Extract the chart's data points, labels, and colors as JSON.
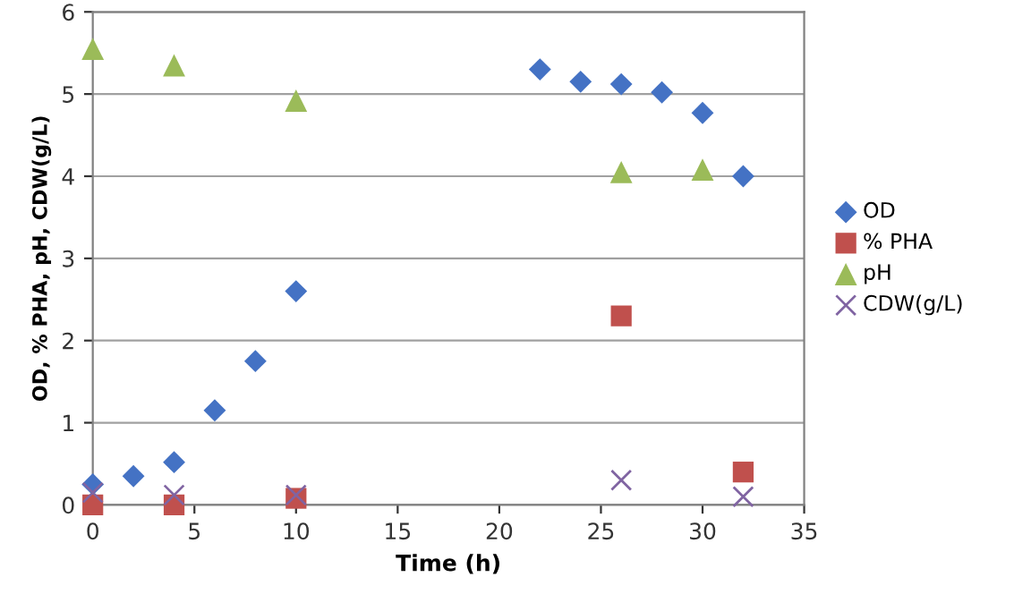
{
  "chart_data": {
    "type": "scatter",
    "xlabel": "Time (h)",
    "ylabel": "OD, % PHA, pH, CDW(g/L)",
    "xlim": [
      0,
      35
    ],
    "xticks": [
      0,
      5,
      10,
      15,
      20,
      25,
      30,
      35
    ],
    "ylim": [
      0,
      6
    ],
    "yticks": [
      0,
      1,
      2,
      3,
      4,
      5,
      6
    ],
    "grid": "y",
    "legend": "right",
    "series": [
      {
        "name": "OD",
        "color": "#4472c4",
        "marker": "diamond",
        "x": [
          0,
          2,
          4,
          6,
          8,
          10,
          22,
          24,
          26,
          28,
          30,
          32
        ],
        "values": [
          0.25,
          0.35,
          0.52,
          1.15,
          1.75,
          2.6,
          5.3,
          5.15,
          5.12,
          5.02,
          4.77,
          4.0
        ]
      },
      {
        "name": "% PHA",
        "color": "#c0504d",
        "marker": "square",
        "x": [
          0,
          4,
          10,
          26,
          32
        ],
        "values": [
          0,
          0,
          0.08,
          2.3,
          0.4
        ]
      },
      {
        "name": "pH",
        "color": "#9bbb59",
        "marker": "triangle",
        "x": [
          0,
          4,
          10,
          26,
          30
        ],
        "values": [
          5.55,
          5.35,
          4.92,
          4.05,
          4.08
        ]
      },
      {
        "name": "CDW(g/L)",
        "color": "#8064a2",
        "marker": "cross",
        "x": [
          0,
          4,
          10,
          26,
          32
        ],
        "values": [
          0.15,
          0.12,
          0.12,
          0.3,
          0.1
        ]
      }
    ]
  }
}
